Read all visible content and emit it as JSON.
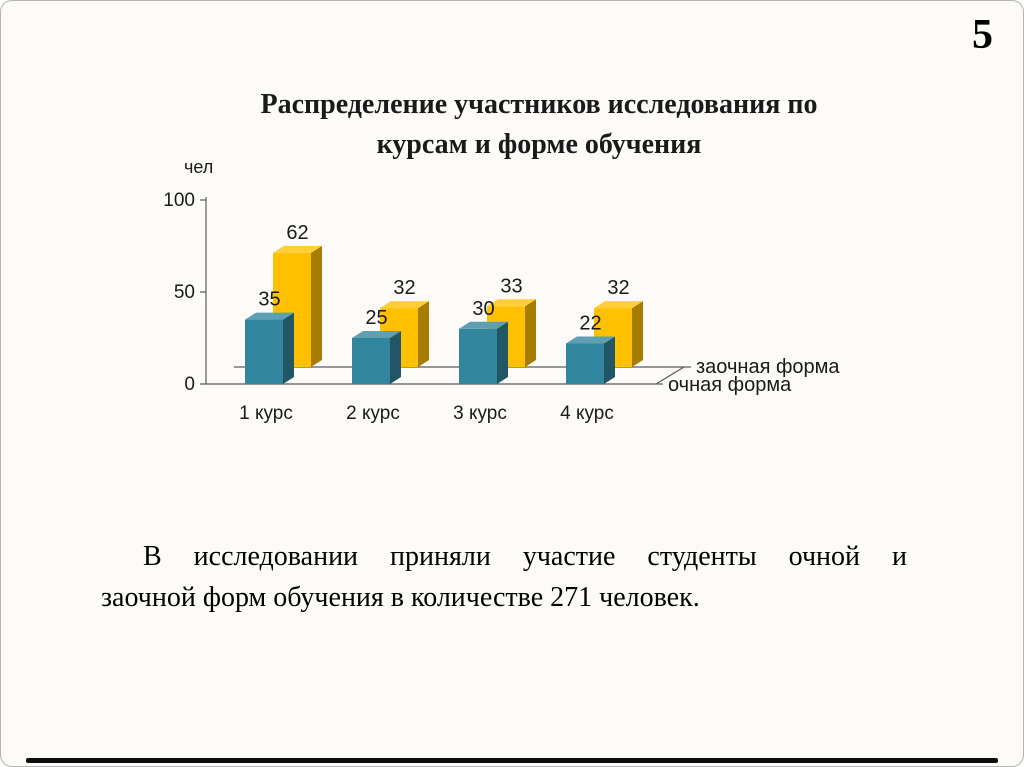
{
  "page": {
    "number": "5"
  },
  "title": {
    "line1": "Распределение участников исследования по",
    "line2": "курсам и форме обучения"
  },
  "body": {
    "line1": "В исследовании приняли участие студенты очной и",
    "line2": "заочной форм обучения в количестве 271 человек."
  },
  "chart_data": {
    "type": "bar",
    "style": "3d-clustered-column",
    "title": "Распределение участников исследования по курсам и форме обучения",
    "categories": [
      "1 курс",
      "2 курс",
      "3 курс",
      "4 курс"
    ],
    "series": [
      {
        "name": "очная форма",
        "values": [
          35,
          25,
          30,
          22
        ],
        "color": "#31859C"
      },
      {
        "name": "заочная форма",
        "values": [
          62,
          32,
          33,
          32
        ],
        "color": "#FFC000"
      }
    ],
    "ylabel": "чел",
    "yticks": [
      0,
      50,
      100
    ],
    "ylim": [
      0,
      100
    ],
    "grid": false,
    "data_labels": true,
    "depth_axis_labels": [
      "заочная форма",
      "очная форма"
    ],
    "axis_color": "#595959",
    "label_color": "#1a1a1a"
  }
}
